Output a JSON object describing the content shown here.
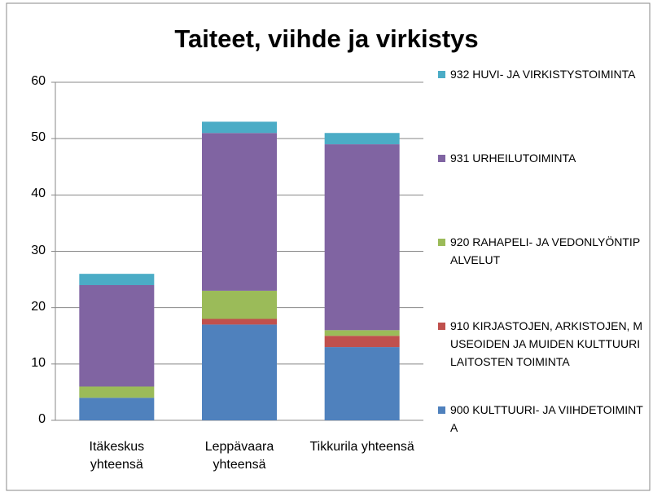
{
  "chart_data": {
    "type": "stacked_bar",
    "title": "Taiteet, viihde ja virkistys",
    "categories": [
      "Itäkeskus yhteensä",
      "Leppävaara yhteensä",
      "Tikkurila yhteensä"
    ],
    "series": [
      {
        "name": "900 KULTTUURI- JA VIIHDETOIMINTA",
        "color": "#4f81bd",
        "values": [
          4,
          17,
          13
        ]
      },
      {
        "name": "910 KIRJASTOJEN, ARKISTOJEN, MUSEOIDEN JA MUIDEN KULTTUURILAITOSTEN TOIMINTA",
        "color": "#c0504d",
        "values": [
          0,
          1,
          2
        ]
      },
      {
        "name": "920 RAHAPELI- JA VEDONLYÖNTIPALVELUT",
        "color": "#9bbb59",
        "values": [
          2,
          5,
          1
        ]
      },
      {
        "name": "931 URHEILUTOIMINTA",
        "color": "#8064a2",
        "values": [
          18,
          28,
          33
        ]
      },
      {
        "name": "932 HUVI- JA VIRKISTYSTOIMINTA",
        "color": "#4bacc6",
        "values": [
          2,
          2,
          2
        ]
      }
    ],
    "ylim": [
      0,
      60
    ],
    "yticks": [
      0,
      10,
      20,
      30,
      40,
      50,
      60
    ],
    "grid": true,
    "legend": "right"
  }
}
